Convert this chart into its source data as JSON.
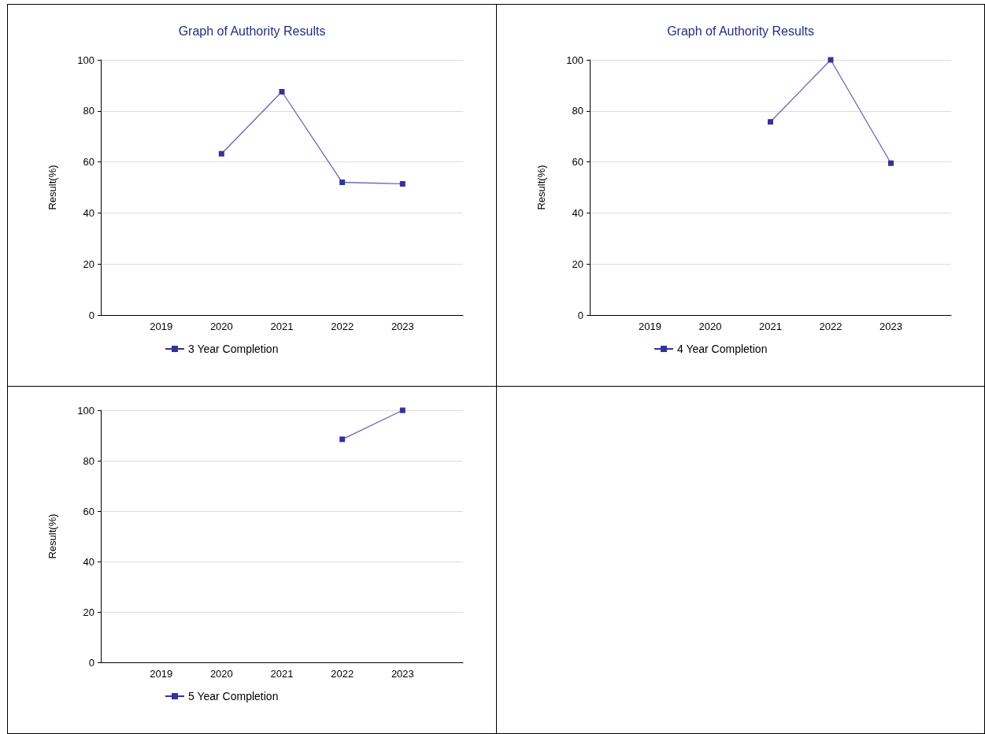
{
  "chart_data": [
    {
      "type": "line",
      "title": "Graph of Authority Results",
      "ylabel": "Result(%)",
      "categories": [
        null,
        "2019",
        "2020",
        "2021",
        "2022",
        "2023",
        null
      ],
      "series": [
        {
          "name": "3 Year Completion",
          "color": "#333399",
          "values": [
            null,
            null,
            63.2,
            87.5,
            52.0,
            51.4,
            null
          ]
        }
      ],
      "ylim": [
        0,
        100
      ],
      "yticks": [
        0,
        20,
        40,
        60,
        80,
        100
      ],
      "grid": "y",
      "legend": "bottom",
      "marker": "square"
    },
    {
      "type": "line",
      "title": "Graph of Authority Results",
      "ylabel": "Result(%)",
      "categories": [
        null,
        "2019",
        "2020",
        "2021",
        "2022",
        "2023",
        null
      ],
      "series": [
        {
          "name": "4 Year Completion",
          "color": "#333399",
          "values": [
            null,
            null,
            null,
            75.7,
            100,
            59.5,
            null
          ]
        }
      ],
      "ylim": [
        0,
        100
      ],
      "yticks": [
        0,
        20,
        40,
        60,
        80,
        100
      ],
      "grid": "y",
      "legend": "bottom",
      "marker": "square"
    },
    {
      "type": "line",
      "ylabel": "Result(%)",
      "categories": [
        null,
        "2019",
        "2020",
        "2021",
        "2022",
        "2023",
        null
      ],
      "series": [
        {
          "name": "5 Year Completion",
          "color": "#333399",
          "values": [
            null,
            null,
            null,
            null,
            88.5,
            100,
            null
          ]
        }
      ],
      "ylim": [
        0,
        100
      ],
      "yticks": [
        0,
        20,
        40,
        60,
        80,
        100
      ],
      "grid": "y",
      "legend": "bottom",
      "marker": "square"
    }
  ]
}
